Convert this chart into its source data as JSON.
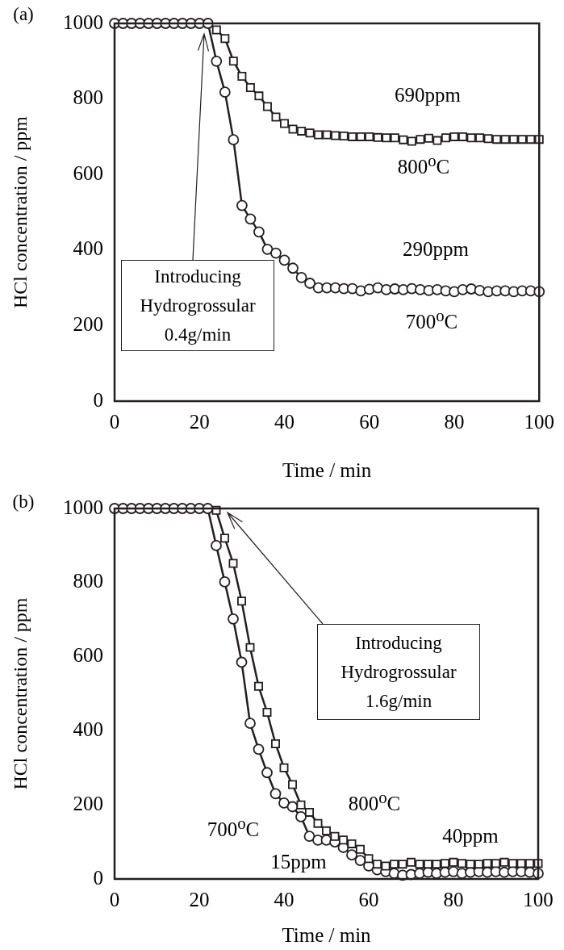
{
  "chart_data": [
    {
      "type": "line",
      "xlabel": "Time / min",
      "ylabel": "HCl concentration / ppm",
      "xlim": [
        0,
        100
      ],
      "xticks": [
        0,
        20,
        40,
        60,
        80,
        100
      ],
      "ylim": [
        0,
        1000
      ],
      "yticks": [
        0,
        200,
        400,
        600,
        800,
        1000
      ],
      "grid": false,
      "legend": false,
      "line_style": "solid",
      "annotations": [
        "(a)",
        "690ppm",
        "800$^{o}$C",
        "290ppm",
        "700$^{o}$C",
        "Introducing\nHydrogrossular\n0.4g/min"
      ],
      "series": [
        {
          "type": "line",
          "marker": "square",
          "color": "#231f20",
          "x": [
            24,
            26,
            28,
            30,
            32,
            34,
            36,
            38,
            40,
            42,
            44,
            46,
            48,
            50,
            52,
            54,
            56,
            58,
            60,
            62,
            64,
            66,
            68,
            70,
            72,
            74,
            76,
            78,
            80,
            82,
            84,
            86,
            88,
            90,
            92,
            94,
            96,
            98,
            100
          ],
          "values": [
            983,
            960,
            900,
            860,
            830,
            808,
            780,
            752,
            735,
            720,
            715,
            710,
            705,
            705,
            703,
            702,
            700,
            700,
            700,
            698,
            697,
            697,
            692,
            688,
            693,
            696,
            690,
            697,
            700,
            700,
            697,
            697,
            695,
            693,
            693,
            693,
            693,
            693,
            693
          ]
        },
        {
          "type": "line",
          "marker": "circle",
          "color": "#231f20",
          "x": [
            0,
            2,
            4,
            6,
            8,
            10,
            12,
            14,
            16,
            18,
            20,
            22,
            24,
            26,
            28,
            30,
            32,
            34,
            36,
            38,
            40,
            42,
            44,
            46,
            48,
            50,
            52,
            54,
            56,
            58,
            60,
            62,
            64,
            66,
            68,
            70,
            72,
            74,
            76,
            78,
            80,
            82,
            84,
            86,
            88,
            90,
            92,
            94,
            96,
            98,
            100
          ],
          "values": [
            1000,
            1000,
            1000,
            1000,
            1000,
            1000,
            1000,
            1000,
            1000,
            1000,
            1000,
            1000,
            900,
            818,
            692,
            518,
            482,
            448,
            402,
            392,
            373,
            352,
            327,
            312,
            300,
            300,
            300,
            298,
            298,
            292,
            296,
            300,
            295,
            297,
            295,
            298,
            295,
            293,
            295,
            292,
            290,
            295,
            297,
            293,
            290,
            292,
            292,
            290,
            292,
            292,
            290
          ]
        }
      ]
    },
    {
      "type": "line",
      "xlabel": "Time / min",
      "ylabel": "HCl concentration / ppm",
      "xlim": [
        0,
        100
      ],
      "xticks": [
        0,
        20,
        40,
        60,
        80,
        100
      ],
      "ylim": [
        0,
        1000
      ],
      "yticks": [
        0,
        200,
        400,
        600,
        800,
        1000
      ],
      "grid": false,
      "legend": false,
      "line_style": "solid",
      "annotations": [
        "(b)",
        "800$^{o}$C",
        "700$^{o}$C",
        "40ppm",
        "15ppm",
        "Introducing\nHydrogrossular\n1.6g/min"
      ],
      "series": [
        {
          "type": "line",
          "marker": "square",
          "color": "#231f20",
          "x": [
            24,
            26,
            28,
            30,
            32,
            34,
            36,
            38,
            40,
            42,
            44,
            46,
            48,
            50,
            52,
            54,
            56,
            58,
            60,
            62,
            64,
            66,
            68,
            70,
            72,
            74,
            76,
            78,
            80,
            82,
            84,
            86,
            88,
            90,
            92,
            94,
            96,
            98,
            100
          ],
          "values": [
            995,
            920,
            852,
            750,
            625,
            520,
            450,
            365,
            300,
            255,
            200,
            180,
            150,
            130,
            115,
            105,
            95,
            80,
            55,
            40,
            35,
            40,
            40,
            45,
            40,
            40,
            40,
            42,
            45,
            42,
            40,
            40,
            42,
            42,
            45,
            42,
            42,
            42,
            42
          ]
        },
        {
          "type": "line",
          "marker": "circle",
          "color": "#231f20",
          "x": [
            0,
            2,
            4,
            6,
            8,
            10,
            12,
            14,
            16,
            18,
            20,
            22,
            24,
            26,
            28,
            30,
            32,
            34,
            36,
            38,
            40,
            42,
            44,
            46,
            48,
            50,
            52,
            54,
            56,
            58,
            60,
            62,
            64,
            66,
            68,
            70,
            72,
            74,
            76,
            78,
            80,
            82,
            84,
            86,
            88,
            90,
            92,
            94,
            96,
            98,
            100
          ],
          "values": [
            1000,
            1000,
            1000,
            1000,
            1000,
            1000,
            1000,
            1000,
            1000,
            1000,
            1000,
            1000,
            900,
            802,
            702,
            585,
            420,
            350,
            287,
            230,
            205,
            195,
            168,
            115,
            105,
            105,
            100,
            85,
            65,
            50,
            35,
            25,
            20,
            15,
            10,
            12,
            15,
            18,
            15,
            18,
            20,
            15,
            18,
            20,
            18,
            20,
            18,
            20,
            20,
            18,
            15
          ]
        }
      ]
    }
  ]
}
